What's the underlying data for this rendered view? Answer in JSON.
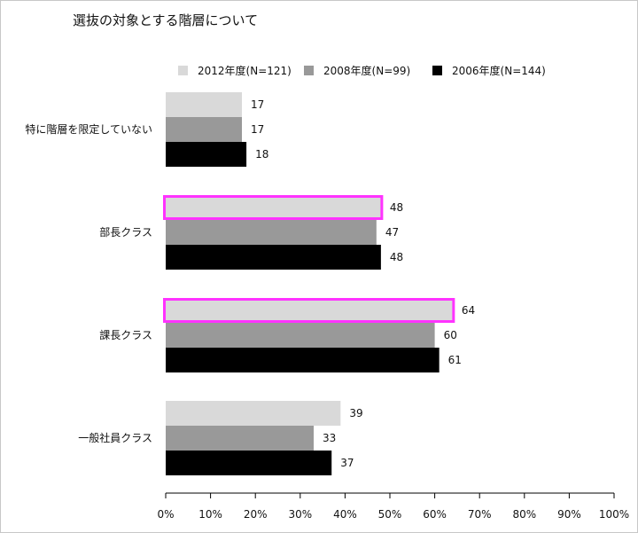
{
  "chart_data": {
    "type": "bar",
    "orientation": "horizontal",
    "title": "選抜の対象とする階層について",
    "categories": [
      "特に階層を限定していない",
      "部長クラス",
      "課長クラス",
      "一般社員クラス"
    ],
    "series": [
      {
        "name": "2012年度(N=121)",
        "color": "#d9d9d9",
        "values": [
          17,
          48,
          64,
          39
        ]
      },
      {
        "name": "2008年度(N=99)",
        "color": "#999999",
        "values": [
          17,
          47,
          60,
          33
        ]
      },
      {
        "name": "2006年度(N=144)",
        "color": "#000000",
        "values": [
          18,
          48,
          61,
          37
        ]
      }
    ],
    "xlim": [
      0,
      100
    ],
    "xticks": [
      "0%",
      "10%",
      "20%",
      "30%",
      "40%",
      "50%",
      "60%",
      "70%",
      "80%",
      "90%",
      "100%"
    ],
    "highlight": {
      "series": 0,
      "categories": [
        1,
        2
      ],
      "color": "#ff33ff"
    },
    "legend": "top",
    "grid": false
  }
}
